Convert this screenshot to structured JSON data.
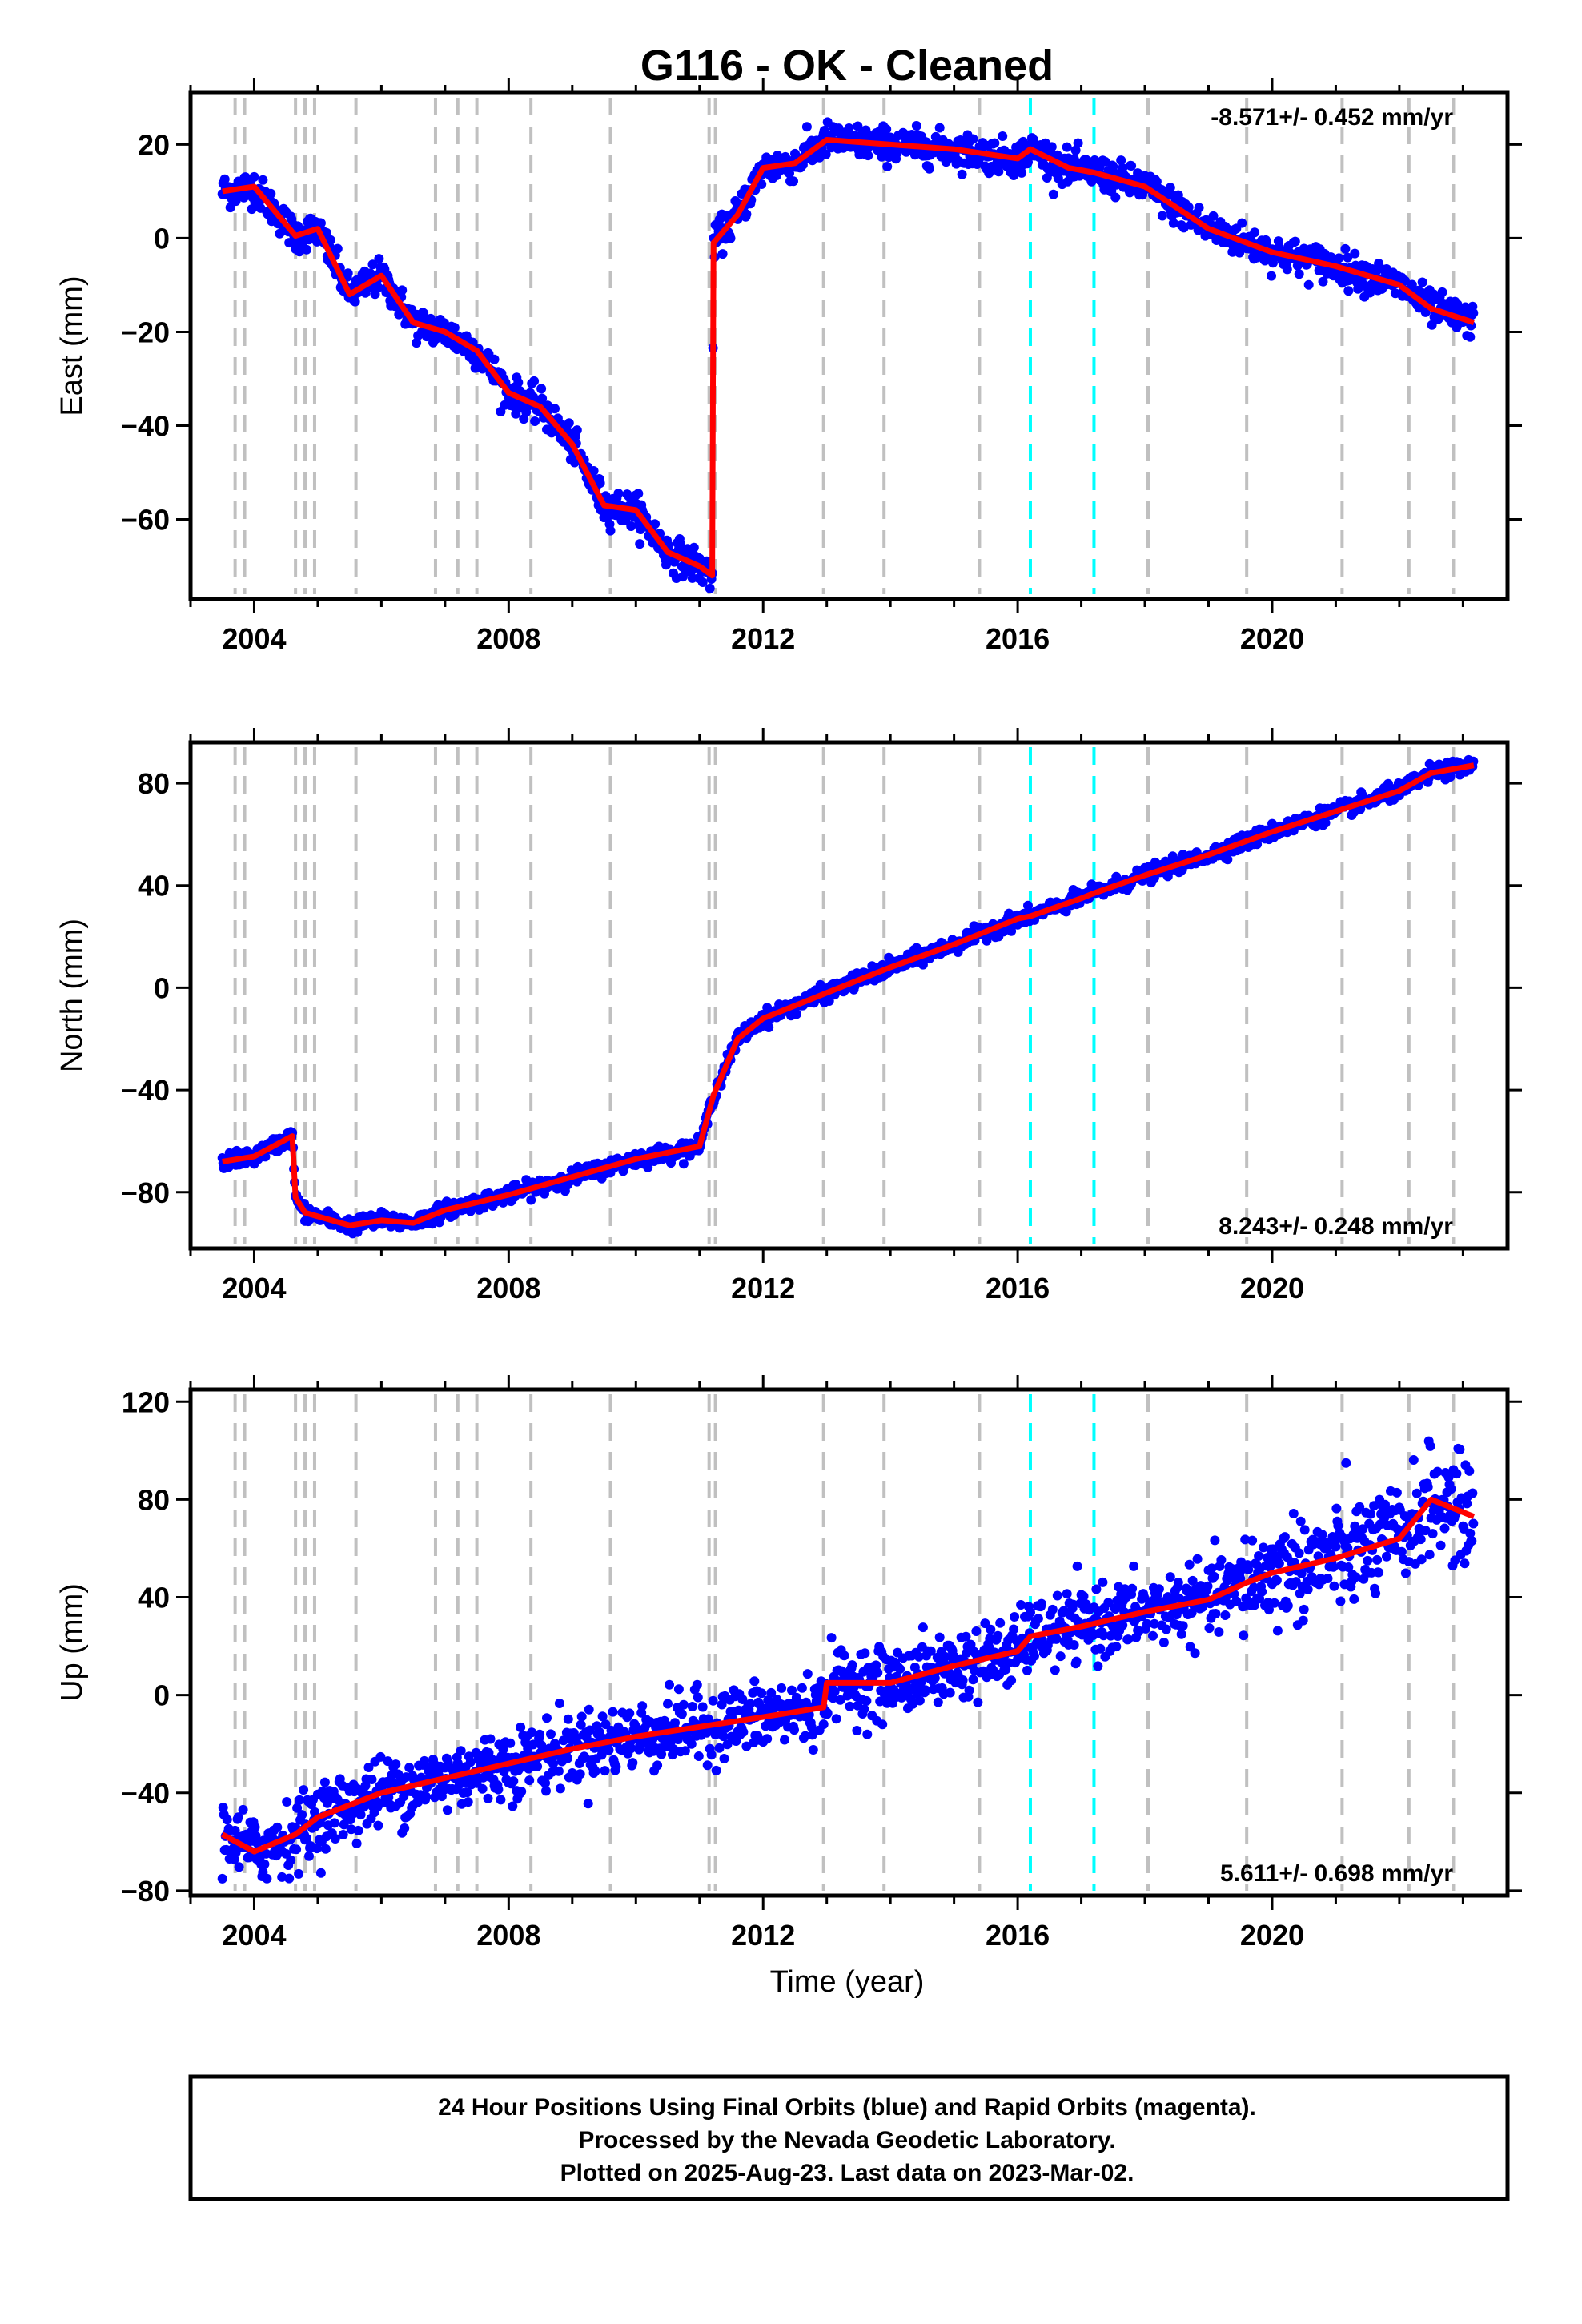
{
  "title": "G116  - OK - Cleaned",
  "colors": {
    "data_points": "#0000ff",
    "model_line": "#ff0000",
    "equipment_change_lines": "#c0c0c0",
    "earthquake_lines": "#00ffff",
    "frame": "#000000"
  },
  "xaxis": {
    "label": "Time (year)",
    "range": [
      2003.0,
      2023.7
    ],
    "ticks": [
      "2004",
      "2008",
      "2012",
      "2016",
      "2020"
    ],
    "tick_values": [
      2004,
      2008,
      2012,
      2016,
      2020
    ],
    "minor_step": 1
  },
  "event_lines": {
    "equipment_changes": [
      2003.7,
      2003.85,
      2004.65,
      2004.8,
      2004.95,
      2005.6,
      2006.85,
      2007.2,
      2007.5,
      2008.35,
      2009.6,
      2011.15,
      2011.25,
      2012.95,
      2013.9,
      2015.4,
      2018.05,
      2019.6,
      2021.1,
      2022.15,
      2022.85
    ],
    "earthquakes": [
      2016.2,
      2017.2
    ]
  },
  "chart_data": [
    {
      "type": "scatter",
      "name": "east",
      "ylabel": "East (mm)",
      "ylim": [
        -77,
        31
      ],
      "yticks": [
        "20",
        "0",
        "−20",
        "−40",
        "−60"
      ],
      "ytick_values": [
        20,
        0,
        -20,
        -40,
        -60
      ],
      "rate_text": "-8.571+/- 0.452 mm/yr",
      "rate_position": "top-right",
      "series": [
        {
          "name": "model",
          "x": [
            2003.5,
            2004.0,
            2004.65,
            2005.0,
            2005.5,
            2006.0,
            2006.5,
            2007.0,
            2007.5,
            2008.0,
            2008.5,
            2009.0,
            2009.5,
            2010.0,
            2010.5,
            2011.0,
            2011.2,
            2011.22,
            2011.6,
            2012.0,
            2012.5,
            2013.0,
            2014.0,
            2015.0,
            2016.0,
            2016.2,
            2016.8,
            2017.2,
            2018.0,
            2019.0,
            2020.0,
            2021.0,
            2022.0,
            2022.5,
            2023.17
          ],
          "y": [
            10,
            11,
            0.5,
            2,
            -12,
            -8,
            -18,
            -20,
            -24,
            -33,
            -36,
            -44,
            -57,
            -58,
            -67,
            -70,
            -72,
            -1,
            5,
            15,
            16,
            21,
            20,
            19,
            17,
            19,
            15,
            14,
            11,
            2,
            -3,
            -6,
            -10,
            -15,
            -18
          ]
        }
      ]
    },
    {
      "type": "scatter",
      "name": "north",
      "ylabel": "North (mm)",
      "ylim": [
        -102,
        96
      ],
      "yticks": [
        "80",
        "40",
        "0",
        "−40",
        "−80"
      ],
      "ytick_values": [
        80,
        40,
        0,
        -40,
        -80
      ],
      "rate_text": "8.243+/- 0.248 mm/yr",
      "rate_position": "bottom-right",
      "series": [
        {
          "name": "model",
          "x": [
            2003.5,
            2004.0,
            2004.6,
            2004.65,
            2004.8,
            2005.5,
            2006.0,
            2006.5,
            2007.0,
            2008.0,
            2009.0,
            2010.0,
            2011.0,
            2011.22,
            2011.6,
            2012.0,
            2013.0,
            2014.0,
            2015.0,
            2016.0,
            2016.2,
            2017.0,
            2017.2,
            2018.0,
            2019.0,
            2020.0,
            2021.0,
            2022.0,
            2022.5,
            2023.17
          ],
          "y": [
            -68,
            -66,
            -58,
            -82,
            -88,
            -93,
            -91,
            -92,
            -87,
            -81,
            -74,
            -67,
            -62,
            -42,
            -20,
            -12,
            -2,
            8,
            17,
            27,
            28,
            35,
            37,
            44,
            52,
            61,
            69,
            77,
            84,
            87
          ]
        }
      ]
    },
    {
      "type": "scatter",
      "name": "up",
      "ylabel": "Up (mm)",
      "ylim": [
        -82,
        125
      ],
      "yticks": [
        "120",
        "80",
        "40",
        "0",
        "−40",
        "−80"
      ],
      "ytick_values": [
        120,
        80,
        40,
        0,
        -40,
        -80
      ],
      "rate_text": "5.611+/- 0.698 mm/yr",
      "rate_position": "bottom-right",
      "series": [
        {
          "name": "model",
          "x": [
            2003.5,
            2004.0,
            2004.65,
            2005.0,
            2006.0,
            2007.0,
            2008.0,
            2009.0,
            2010.0,
            2011.0,
            2012.0,
            2012.95,
            2013.0,
            2014.0,
            2015.0,
            2016.0,
            2016.2,
            2017.0,
            2018.0,
            2019.0,
            2019.6,
            2020.0,
            2021.0,
            2022.0,
            2022.5,
            2023.17
          ],
          "y": [
            -57,
            -64,
            -57,
            -50,
            -40,
            -34,
            -28,
            -22,
            -17,
            -13,
            -9,
            -5,
            5,
            5,
            12,
            18,
            24,
            28,
            34,
            39,
            46,
            50,
            56,
            64,
            80,
            73
          ]
        }
      ]
    }
  ],
  "footer": {
    "line1": "24 Hour Positions Using Final Orbits (blue) and Rapid Orbits (magenta).",
    "line2": "Processed by the Nevada Geodetic Laboratory.",
    "line3": "Plotted on 2025-Aug-23. Last data on 2023-Mar-02."
  }
}
